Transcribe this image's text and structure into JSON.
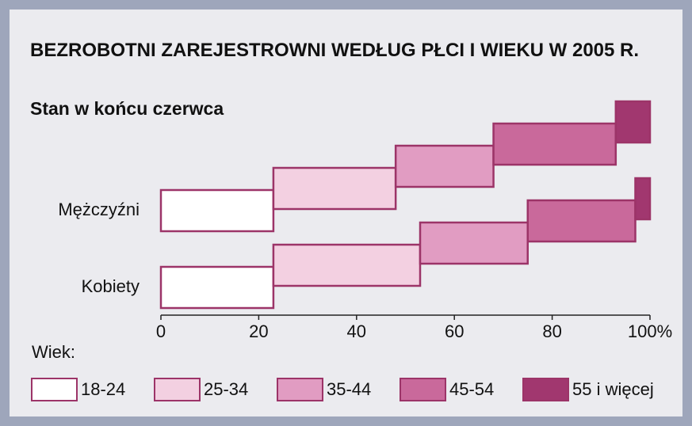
{
  "chart_data": {
    "type": "staircase-bar",
    "title": "BEZROBOTNI ZAREJESTROWNI WEDŁUG PŁCI I WIEKU W 2005 R.",
    "subtitle": "Stan w końcu czerwca",
    "categories": [
      "Mężczyźni",
      "Kobiety"
    ],
    "series": [
      {
        "name": "18-24",
        "color": "#ffffff",
        "values": [
          23,
          23
        ]
      },
      {
        "name": "25-34",
        "color": "#f3d0e1",
        "values": [
          25,
          30
        ]
      },
      {
        "name": "35-44",
        "color": "#e19cc2",
        "values": [
          20,
          22
        ]
      },
      {
        "name": "45-54",
        "color": "#c9699b",
        "values": [
          25,
          22
        ]
      },
      {
        "name": "55 i więcej",
        "color": "#a1376f",
        "values": [
          7,
          3
        ]
      }
    ],
    "legend_title": "Wiek:",
    "xlim": [
      0,
      100
    ],
    "xticks": [
      0,
      20,
      40,
      60,
      80,
      {
        "value": 100,
        "label": "100%"
      }
    ]
  }
}
